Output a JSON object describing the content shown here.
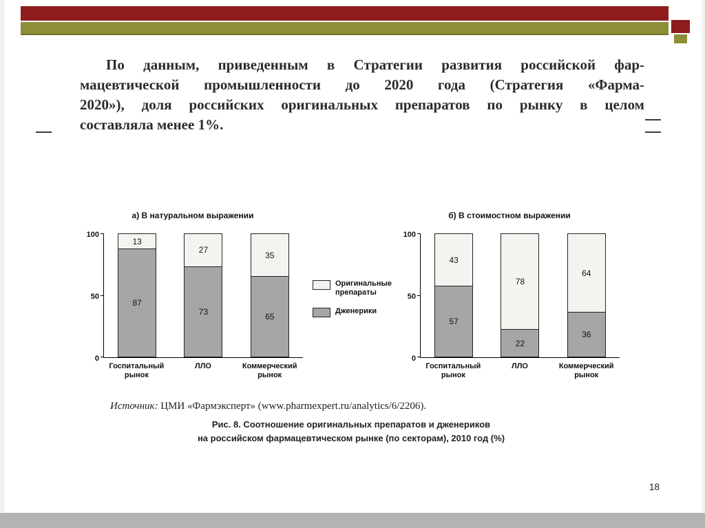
{
  "slide": {
    "paragraph_lines": [
      "По данным, приведенным в Стратегии развития российской фар-",
      "мацевтической промышленности до 2020 года (Стратегия «Фарма-",
      "2020»), доля российских оригинальных препаратов по рынку в целом",
      "составляла менее 1%."
    ],
    "page_number": "18"
  },
  "figure": {
    "legend": [
      {
        "label": "Оригинальные\nпрепараты",
        "swatch_color": "#f3f3ef"
      },
      {
        "label": "Дженерики",
        "swatch_color": "#a6a6a6"
      }
    ],
    "source_label": "Источник:",
    "source_text": " ЦМИ «Фармэксперт» (www.pharmexpert.ru/analytics/6/2206).",
    "caption_lines": [
      "Рис. 8. Соотношение оригинальных препаратов и дженериков",
      "на российском фармацевтическом рынке (по секторам), 2010 год (%)"
    ]
  },
  "chart_data": [
    {
      "type": "bar",
      "stacked": true,
      "title": "а) В натуральном выражении",
      "categories": [
        "Госпитальный рынок",
        "ЛЛО",
        "Коммерческий рынок"
      ],
      "series": [
        {
          "name": "Дженерики",
          "values": [
            87,
            73,
            65
          ]
        },
        {
          "name": "Оригинальные препараты",
          "values": [
            13,
            27,
            35
          ]
        }
      ],
      "xlabel": "",
      "ylabel": "",
      "ylim": [
        0,
        100
      ],
      "yticks": [
        0,
        50,
        100
      ],
      "grid": false,
      "legend_position": "center-between-charts"
    },
    {
      "type": "bar",
      "stacked": true,
      "title": "б) В стоимостном выражении",
      "categories": [
        "Госпитальный рынок",
        "ЛЛО",
        "Коммерческий рынок"
      ],
      "series": [
        {
          "name": "Дженерики",
          "values": [
            57,
            22,
            36
          ]
        },
        {
          "name": "Оригинальные препараты",
          "values": [
            43,
            78,
            64
          ]
        }
      ],
      "xlabel": "",
      "ylabel": "",
      "ylim": [
        0,
        100
      ],
      "yticks": [
        0,
        50,
        100
      ],
      "grid": false,
      "legend_position": "center-between-charts"
    }
  ],
  "colors": {
    "maroon_bar": "#8e1c1c",
    "olive_bar": "#8d8f38",
    "generic_fill": "#a6a6a6",
    "original_fill": "#f3f3ef",
    "bottom_bar": "#b2b4b2"
  }
}
